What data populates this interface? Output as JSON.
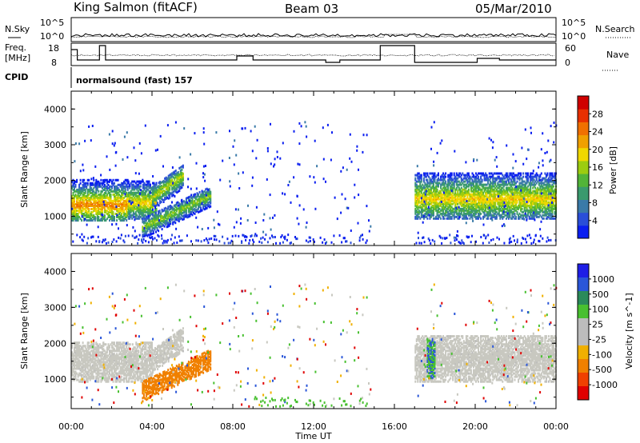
{
  "header": {
    "site": "King Salmon (fitACF)",
    "beam": "Beam 03",
    "date": "05/Mar/2010"
  },
  "strip": {
    "nsky_label": "N.Sky",
    "nsearch_label": "N.Search",
    "nsky_ticks": [
      "10^5",
      "10^0"
    ],
    "nsearch_ticks": [
      "10^5",
      "10^0"
    ],
    "freq_label_1": "Freq.",
    "freq_label_2": "[MHz]",
    "freq_ticks": [
      "18",
      "8"
    ],
    "nave_label": "Nave",
    "nave_ticks": [
      "60",
      "0"
    ],
    "cpid_label": "CPID",
    "cpid_text": "normalsound (fast) 157"
  },
  "colors": {
    "power": [
      "#0a1ef0",
      "#2a4ed8",
      "#3a7aa8",
      "#3a9a6e",
      "#52b438",
      "#9ccc10",
      "#f0d800",
      "#f0a000",
      "#f07000",
      "#e83000",
      "#d00000"
    ],
    "velocity": [
      "#1e1ee6",
      "#2a56d8",
      "#2a8a5a",
      "#48c030",
      "#bcbcbc",
      "#bcbcbc",
      "#f0b000",
      "#f08000",
      "#f04000",
      "#e00000"
    ],
    "ground_scatter": "#c8c8c0"
  },
  "chart_data": [
    {
      "type": "heatmap",
      "name": "Power",
      "xlabel": "",
      "ylabel": "Slant Range [km]",
      "x_unit": "hours UT",
      "xlim": [
        0,
        24
      ],
      "ylim": [
        180,
        4500
      ],
      "x_ticks": [
        "00:00",
        "04:00",
        "08:00",
        "12:00",
        "16:00",
        "20:00",
        "00:00"
      ],
      "y_ticks": [
        1000,
        2000,
        3000,
        4000
      ],
      "colorbar": {
        "label": "Power [dB]",
        "min": 0,
        "max": 32,
        "ticks": [
          4,
          8,
          12,
          16,
          20,
          24,
          28
        ]
      },
      "regions": [
        {
          "t": [
            0.0,
            2.8
          ],
          "r": [
            850,
            2000
          ],
          "center_r": 1280,
          "peak_power": 24
        },
        {
          "t": [
            2.8,
            4.2
          ],
          "r": [
            900,
            1950
          ],
          "center_r": 1350,
          "peak_power": 20
        },
        {
          "t": [
            4.0,
            5.5
          ],
          "r": [
            1400,
            2400
          ],
          "center_r": 1750,
          "peak_power": 18
        },
        {
          "t": [
            3.5,
            6.9
          ],
          "r": [
            550,
            1750
          ],
          "center_r": 1050,
          "peak_power": 16
        },
        {
          "t": [
            17.0,
            24.0
          ],
          "r": [
            900,
            2200
          ],
          "center_r": 1450,
          "peak_power": 20
        }
      ],
      "data_gap_hours": [
        14.8,
        17.0
      ]
    },
    {
      "type": "heatmap",
      "name": "Velocity",
      "xlabel": "Time UT",
      "ylabel": "Slant Range [km]",
      "x_unit": "hours UT",
      "xlim": [
        0,
        24
      ],
      "ylim": [
        180,
        4500
      ],
      "x_ticks": [
        "00:00",
        "04:00",
        "08:00",
        "12:00",
        "16:00",
        "20:00",
        "00:00"
      ],
      "y_ticks": [
        1000,
        2000,
        3000,
        4000
      ],
      "colorbar": {
        "label": "Velocity [m s^-1]",
        "ticks": [
          "1000",
          "500",
          "100",
          "25",
          "-25",
          "-100",
          "-500",
          "-1000"
        ]
      },
      "regions": [
        {
          "t": [
            0.0,
            4.0
          ],
          "r": [
            900,
            2000
          ],
          "velocity": 0,
          "ground_scatter": true
        },
        {
          "t": [
            4.0,
            5.5
          ],
          "r": [
            1400,
            2400
          ],
          "velocity": 0,
          "ground_scatter": true
        },
        {
          "t": [
            3.5,
            6.9
          ],
          "r": [
            550,
            1750
          ],
          "velocity": -150
        },
        {
          "t": [
            17.0,
            24.0
          ],
          "r": [
            900,
            2200
          ],
          "velocity": 0,
          "ground_scatter": true
        },
        {
          "t": [
            17.6,
            18.0
          ],
          "r": [
            1000,
            2100
          ],
          "velocity": 100
        }
      ]
    }
  ]
}
